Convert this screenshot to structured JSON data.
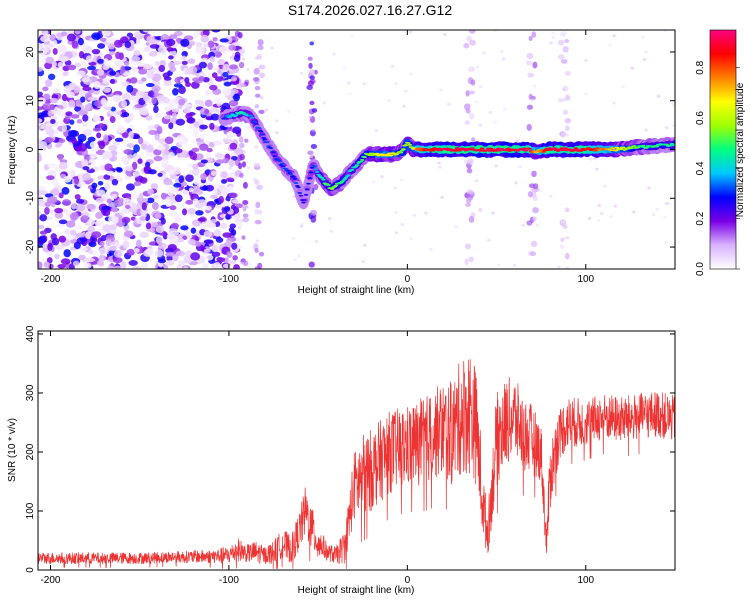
{
  "figure_title": "S174.2026.027.16.27.G12",
  "chart_data": [
    {
      "type": "heatmap",
      "title": "S174.2026.027.16.27.G12",
      "xlabel": "Height of straight line (km)",
      "ylabel": "Frequency (Hz)",
      "xlim": [
        -207,
        150
      ],
      "ylim": [
        -24.5,
        24.5
      ],
      "xticks": [
        -200,
        -100,
        0,
        100
      ],
      "xtick_labels": [
        "-200",
        "-100",
        "0",
        "100"
      ],
      "yticks": [
        -20,
        -10,
        0,
        10,
        20
      ],
      "ytick_labels": [
        "-20",
        "-10",
        "0",
        "10",
        "20"
      ],
      "colorbar": {
        "label": "Normalized spectral amplitude",
        "range": [
          0,
          0.95
        ],
        "ticks": [
          0,
          0.2,
          0.4,
          0.6,
          0.8
        ],
        "tick_labels": [
          "0.0",
          "0.2",
          "0.4",
          "0.6",
          "0.8"
        ],
        "colors": [
          "#ffffff",
          "#d9b3ff",
          "#7a00e6",
          "#0000ff",
          "#00c8ff",
          "#00ff80",
          "#a0ff00",
          "#ffff00",
          "#ff8000",
          "#ff0000",
          "#ff0080"
        ]
      },
      "ridge": {
        "x": [
          -103,
          -98,
          -93,
          -88,
          -83,
          -78,
          -73,
          -68,
          -63,
          -58,
          -53,
          -48,
          -43,
          -38,
          -33,
          -28,
          -23,
          -18,
          -13,
          -8,
          -3,
          0,
          3,
          6,
          10,
          20,
          40,
          60,
          68,
          72,
          80,
          90,
          100,
          115,
          130,
          150
        ],
        "y": [
          6.5,
          7,
          7.5,
          7,
          4,
          1,
          -2,
          -4,
          -6,
          -11,
          -3,
          -6,
          -8,
          -7,
          -5,
          -3,
          -1,
          -1,
          -1,
          -1,
          -0.5,
          1.5,
          0,
          0,
          0,
          0,
          0,
          0,
          0,
          -0.5,
          0,
          0,
          0,
          0,
          0.5,
          1
        ],
        "amplitude": [
          0.3,
          0.4,
          0.45,
          0.35,
          0.3,
          0.3,
          0.3,
          0.3,
          0.3,
          0.25,
          0.3,
          0.45,
          0.55,
          0.5,
          0.4,
          0.45,
          0.55,
          0.6,
          0.7,
          0.65,
          0.55,
          0.6,
          0.6,
          0.8,
          0.85,
          0.9,
          0.9,
          0.9,
          0.9,
          0.7,
          0.9,
          0.9,
          0.88,
          0.7,
          0.5,
          0.45
        ]
      },
      "noise_region_x": [
        -207,
        -100
      ],
      "noise_amplitude": [
        0.02,
        0.3
      ]
    },
    {
      "type": "line",
      "title": "",
      "xlabel": "Height of straight line (km)",
      "ylabel": "SNR (10 * v/v)",
      "xlim": [
        -207,
        150
      ],
      "ylim": [
        0,
        405
      ],
      "xticks": [
        -200,
        -100,
        0,
        100
      ],
      "xtick_labels": [
        "-200",
        "-100",
        "0",
        "100"
      ],
      "yticks": [
        0,
        100,
        200,
        300,
        400
      ],
      "ytick_labels": [
        "0",
        "100",
        "200",
        "300",
        "400"
      ],
      "series": [
        {
          "name": "SNR",
          "color": "#ee3333",
          "x": [
            -207,
            -190,
            -170,
            -150,
            -130,
            -110,
            -100,
            -95,
            -90,
            -85,
            -80,
            -75,
            -70,
            -65,
            -60,
            -57,
            -55,
            -52,
            -50,
            -47,
            -45,
            -40,
            -35,
            -30,
            -25,
            -20,
            -10,
            0,
            10,
            20,
            25,
            30,
            35,
            38,
            40,
            42,
            45,
            50,
            55,
            60,
            65,
            70,
            75,
            78,
            80,
            85,
            90,
            100,
            110,
            120,
            130,
            140,
            150
          ],
          "y": [
            20,
            20,
            20,
            20,
            22,
            23,
            25,
            35,
            28,
            30,
            25,
            30,
            45,
            35,
            70,
            100,
            80,
            60,
            45,
            40,
            30,
            25,
            40,
            140,
            160,
            170,
            200,
            210,
            220,
            240,
            230,
            260,
            270,
            250,
            200,
            120,
            60,
            220,
            250,
            260,
            230,
            220,
            200,
            40,
            160,
            230,
            250,
            250,
            260,
            255,
            260,
            265,
            255
          ],
          "spread": [
            10,
            10,
            10,
            10,
            10,
            12,
            15,
            20,
            15,
            20,
            15,
            20,
            25,
            25,
            35,
            45,
            40,
            35,
            30,
            20,
            15,
            15,
            30,
            60,
            70,
            70,
            70,
            70,
            75,
            80,
            90,
            100,
            110,
            100,
            90,
            60,
            40,
            80,
            75,
            70,
            65,
            60,
            50,
            30,
            60,
            45,
            45,
            40,
            40,
            40,
            40,
            40,
            40
          ]
        }
      ]
    }
  ]
}
